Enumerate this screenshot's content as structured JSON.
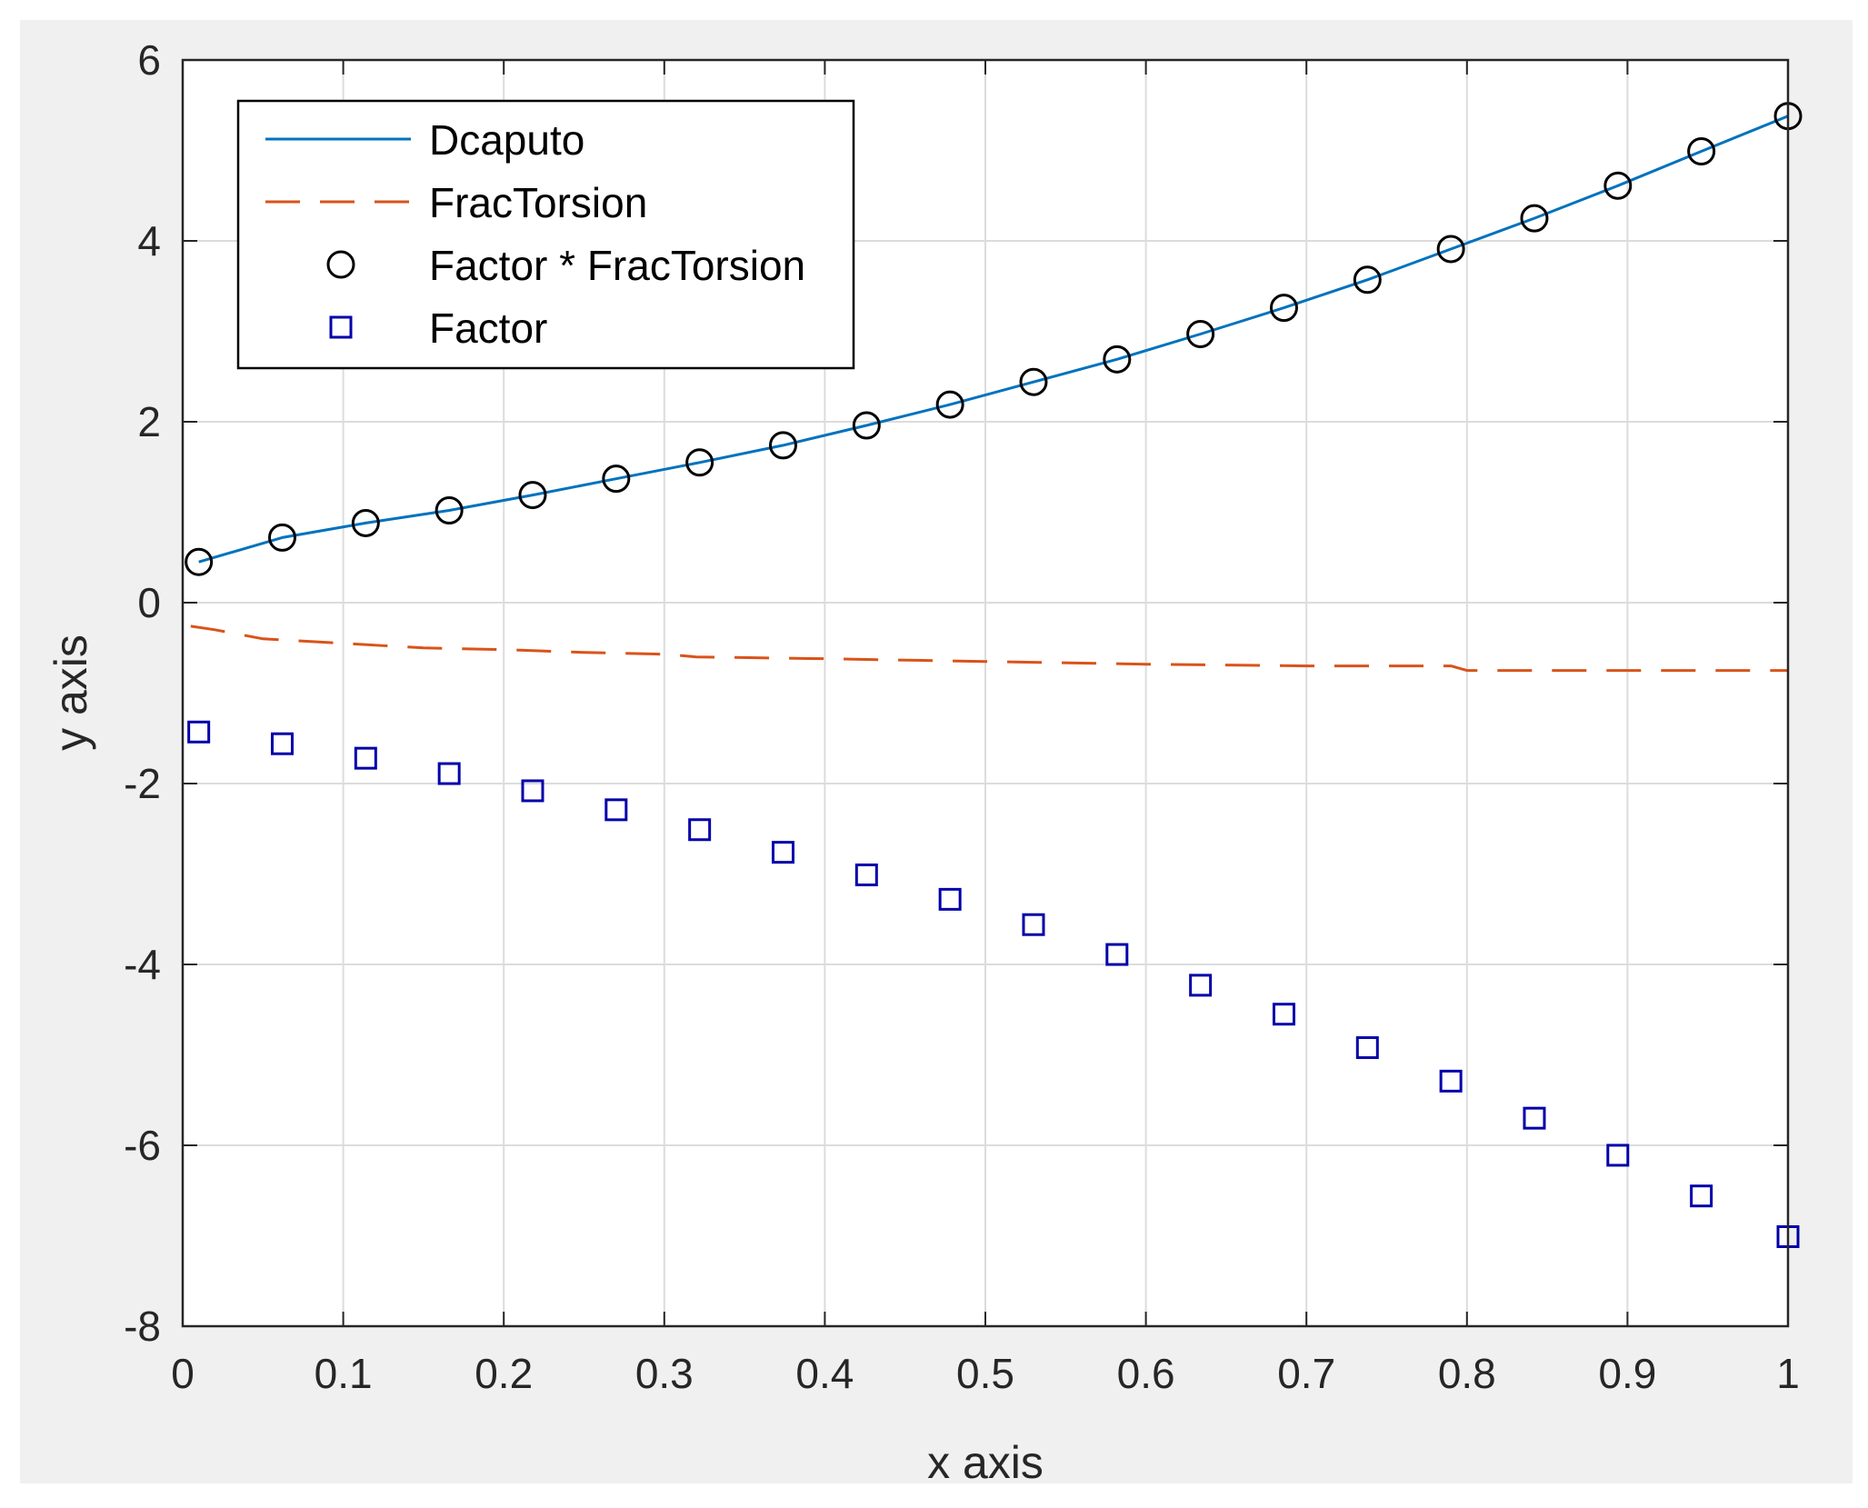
{
  "chart_data": {
    "type": "line",
    "xlabel": "x axis",
    "ylabel": "y axis",
    "xlim": [
      0,
      1
    ],
    "ylim": [
      -8,
      6
    ],
    "grid": true,
    "legend_position": "top-left",
    "xticks": [
      "0",
      "0.1",
      "0.2",
      "0.3",
      "0.4",
      "0.5",
      "0.6",
      "0.7",
      "0.8",
      "0.9",
      "1"
    ],
    "yticks": [
      "-8",
      "-6",
      "-4",
      "-2",
      "0",
      "2",
      "4",
      "6"
    ],
    "x": [
      0.01,
      0.062,
      0.114,
      0.166,
      0.218,
      0.27,
      0.322,
      0.374,
      0.426,
      0.478,
      0.53,
      0.582,
      0.634,
      0.686,
      0.738,
      0.79,
      0.842,
      0.894,
      0.946,
      1.0
    ],
    "series": [
      {
        "name": "Dcaputo",
        "style": "line",
        "color": "#0072bd",
        "values": [
          0.45,
          0.72,
          0.88,
          1.02,
          1.19,
          1.37,
          1.55,
          1.74,
          1.96,
          2.19,
          2.44,
          2.69,
          2.97,
          3.26,
          3.57,
          3.91,
          4.25,
          4.61,
          4.99,
          5.38
        ]
      },
      {
        "name": "FracTorsion",
        "style": "dashed-line",
        "color": "#d95319",
        "x": [
          0.005,
          0.02,
          0.05,
          0.1,
          0.15,
          0.2,
          0.25,
          0.3,
          0.32,
          0.4,
          0.5,
          0.6,
          0.7,
          0.79,
          0.8,
          0.9,
          1.0
        ],
        "values": [
          -0.26,
          -0.3,
          -0.4,
          -0.45,
          -0.5,
          -0.52,
          -0.55,
          -0.57,
          -0.6,
          -0.62,
          -0.65,
          -0.68,
          -0.7,
          -0.7,
          -0.75,
          -0.75,
          -0.75
        ]
      },
      {
        "name": "Factor * FracTorsion",
        "style": "circle-markers",
        "color": "#000000",
        "values": [
          0.45,
          0.72,
          0.88,
          1.02,
          1.19,
          1.37,
          1.55,
          1.74,
          1.96,
          2.19,
          2.44,
          2.69,
          2.97,
          3.26,
          3.57,
          3.91,
          4.25,
          4.61,
          4.99,
          5.38
        ]
      },
      {
        "name": "Factor",
        "style": "square-markers",
        "color": "#0000aa",
        "values": [
          -1.43,
          -1.56,
          -1.72,
          -1.89,
          -2.08,
          -2.29,
          -2.51,
          -2.76,
          -3.01,
          -3.28,
          -3.56,
          -3.89,
          -4.23,
          -4.55,
          -4.92,
          -5.29,
          -5.7,
          -6.11,
          -6.56,
          -7.01
        ]
      }
    ],
    "colors": {
      "axes_background": "#ffffff",
      "figure_background": "#f0f0f0",
      "grid": "#dcdcdc",
      "axis": "#262626"
    }
  }
}
